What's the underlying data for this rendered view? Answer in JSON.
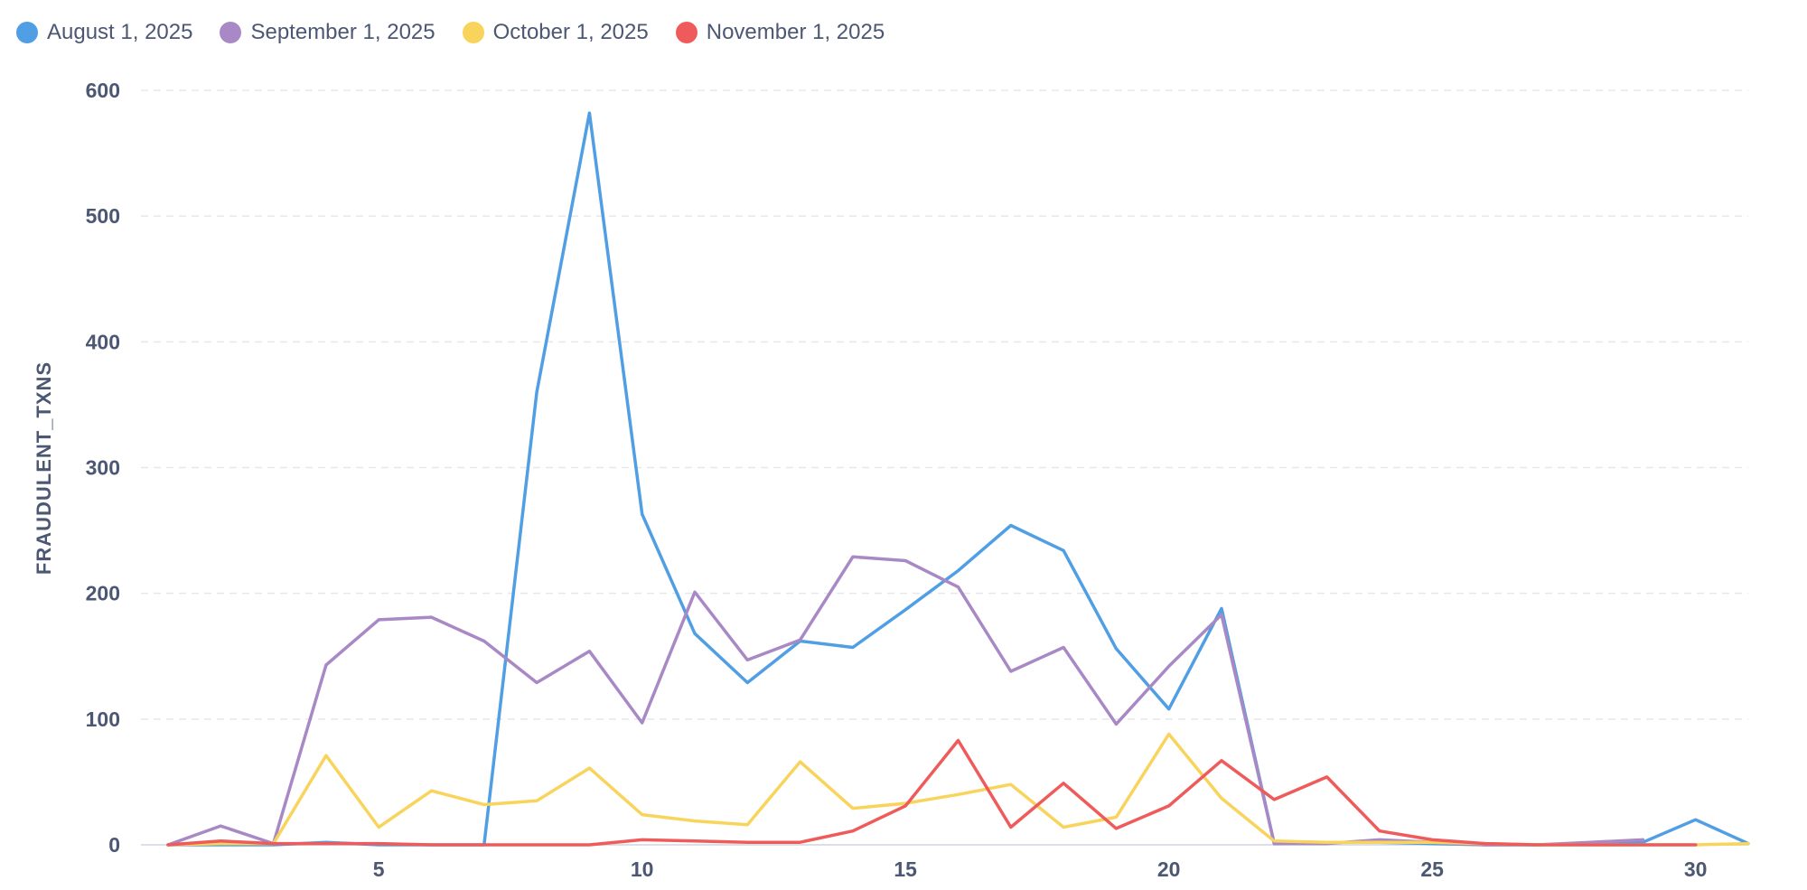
{
  "chart_data": {
    "type": "line",
    "title": "",
    "xlabel": "",
    "ylabel": "FRAUDULENT_TXNS",
    "x": [
      1,
      2,
      3,
      4,
      5,
      6,
      7,
      8,
      9,
      10,
      11,
      12,
      13,
      14,
      15,
      16,
      17,
      18,
      19,
      20,
      21,
      22,
      23,
      24,
      25,
      26,
      27,
      28,
      29,
      30,
      31
    ],
    "xlim": [
      1,
      31
    ],
    "ylim": [
      0,
      600
    ],
    "x_ticks": [
      5,
      10,
      15,
      20,
      25,
      30
    ],
    "y_ticks": [
      0,
      100,
      200,
      300,
      400,
      500,
      600
    ],
    "grid": "horizontal dashed",
    "legend_position": "top-left",
    "series": [
      {
        "name": "August 1, 2025",
        "color": "#509ee3",
        "values": [
          0,
          0,
          0,
          2,
          0,
          0,
          0,
          360,
          582,
          263,
          168,
          129,
          162,
          157,
          187,
          218,
          254,
          234,
          156,
          108,
          188,
          1,
          2,
          2,
          1,
          0,
          0,
          1,
          2,
          20,
          1
        ]
      },
      {
        "name": "September 1, 2025",
        "color": "#a989c5",
        "values": [
          0,
          15,
          1,
          143,
          179,
          181,
          162,
          129,
          154,
          97,
          201,
          147,
          163,
          229,
          226,
          205,
          138,
          157,
          96,
          142,
          183,
          1,
          1,
          4,
          2,
          0,
          0,
          2,
          4,
          null,
          null
        ]
      },
      {
        "name": "October 1, 2025",
        "color": "#f9d45c",
        "values": [
          0,
          1,
          1,
          71,
          14,
          43,
          32,
          35,
          61,
          24,
          19,
          16,
          66,
          29,
          33,
          40,
          48,
          14,
          22,
          88,
          37,
          3,
          2,
          2,
          2,
          1,
          0,
          0,
          0,
          0,
          1
        ]
      },
      {
        "name": "November 1, 2025",
        "color": "#ef5b5b",
        "values": [
          0,
          3,
          1,
          1,
          1,
          0,
          0,
          0,
          0,
          4,
          3,
          2,
          2,
          11,
          31,
          83,
          14,
          49,
          13,
          31,
          67,
          36,
          54,
          11,
          4,
          1,
          0,
          0,
          0,
          0,
          null
        ]
      }
    ]
  }
}
